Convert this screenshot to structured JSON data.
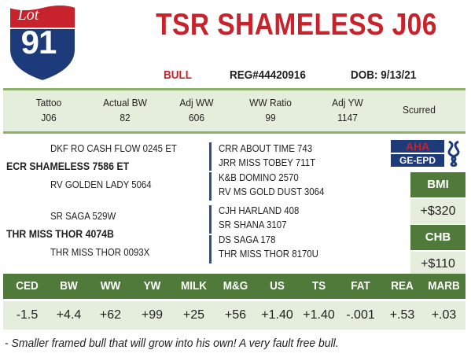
{
  "lot": {
    "label": "Lot",
    "number": "91"
  },
  "animal": {
    "name": "TSR SHAMELESS J06",
    "sex": "BULL",
    "registration": "REG#44420916",
    "dob": "DOB: 9/13/21"
  },
  "stats": [
    {
      "label": "Tattoo",
      "value": "J06"
    },
    {
      "label": "Actual BW",
      "value": "82"
    },
    {
      "label": "Adj WW",
      "value": "606"
    },
    {
      "label": "WW Ratio",
      "value": "99"
    },
    {
      "label": "Adj YW",
      "value": "1147"
    },
    {
      "label": "Scurred",
      "value": ""
    }
  ],
  "pedigree": {
    "sire": "ECR SHAMELESS 7586 ET",
    "sire_sire": "DKF RO CASH FLOW 0245 ET",
    "sire_dam": "RV GOLDEN LADY 5064",
    "dam": "THR MISS THOR 4074B",
    "dam_sire": "SR SAGA 529W",
    "dam_dam": "THR MISS THOR 0093X",
    "sire_sire_sire": "CRR ABOUT TIME 743",
    "sire_sire_dam": "JRR MISS TOBEY 711T",
    "sire_dam_sire": "K&B DOMINO 2570",
    "sire_dam_dam": "RV MS GOLD DUST 3064",
    "dam_sire_sire": "CJH HARLAND 408",
    "dam_sire_dam": "SR SHANA 3107",
    "dam_dam_sire": "DS SAGA 178",
    "dam_dam_dam": "THR MISS THOR 8170U"
  },
  "logo": {
    "line1": "AHA",
    "line2": "GE-EPD"
  },
  "indexes": [
    {
      "label": "BMI",
      "value": "+$320"
    },
    {
      "label": "CHB",
      "value": "+$110"
    }
  ],
  "epds": [
    {
      "label": "CED",
      "value": "-1.5"
    },
    {
      "label": "BW",
      "value": "+4.4"
    },
    {
      "label": "WW",
      "value": "+62"
    },
    {
      "label": "YW",
      "value": "+99"
    },
    {
      "label": "MILK",
      "value": "+25"
    },
    {
      "label": "M&G",
      "value": "+56"
    },
    {
      "label": "US",
      "value": "+1.40"
    },
    {
      "label": "TS",
      "value": "+1.40"
    },
    {
      "label": "FAT",
      "value": "-.001"
    },
    {
      "label": "REA",
      "value": "+.53"
    },
    {
      "label": "MARB",
      "value": "+.03"
    }
  ],
  "comment": "- Smaller framed bull that will grow into his own! A very fault free bull.",
  "colors": {
    "red": "#c8232c",
    "green": "#4f7a3a",
    "light_green": "#e5eddc",
    "navy": "#1d3a7a"
  }
}
